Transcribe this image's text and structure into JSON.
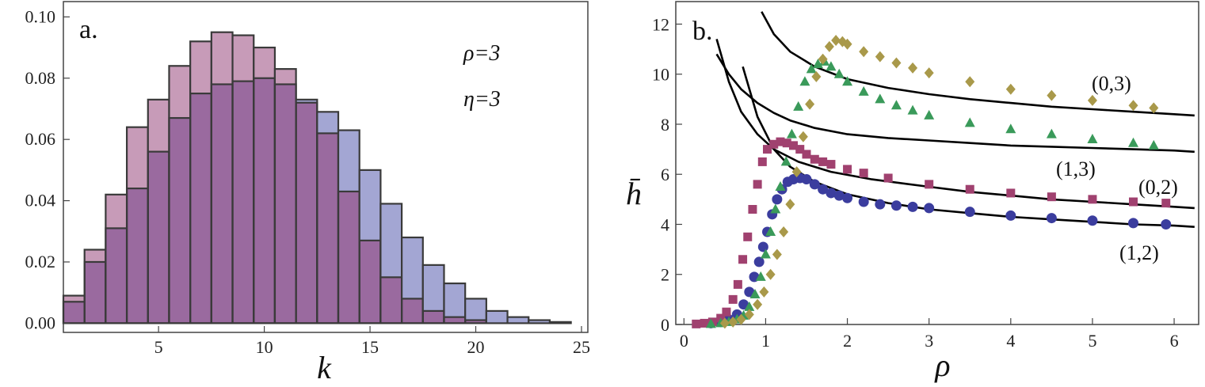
{
  "chart_data": [
    {
      "type": "bar",
      "panel_label": "a.",
      "xlabel": "k",
      "ylabel": "",
      "xlim": [
        0.5,
        25.3
      ],
      "ylim": [
        -0.003,
        0.105
      ],
      "x_ticks": [
        5,
        10,
        15,
        20,
        25
      ],
      "y_ticks": [
        "0.00",
        "0.02",
        "0.04",
        "0.06",
        "0.08",
        "0.10"
      ],
      "annotations": [
        "ρ=3",
        "η=3"
      ],
      "categories": [
        1,
        2,
        3,
        4,
        5,
        6,
        7,
        8,
        9,
        10,
        11,
        12,
        13,
        14,
        15,
        16,
        17,
        18,
        19,
        20,
        21,
        22,
        23,
        24
      ],
      "colors": {
        "pink": "#c79bb8",
        "blue": "#a3a6d3",
        "overlap": "#9a6a9f",
        "edge": "#3a3a3a"
      },
      "series": [
        {
          "name": "pink",
          "values": [
            0.009,
            0.024,
            0.042,
            0.064,
            0.073,
            0.084,
            0.092,
            0.095,
            0.094,
            0.09,
            0.083,
            0.072,
            0.062,
            0.043,
            0.027,
            0.015,
            0.008,
            0.004,
            0.002,
            0.001,
            0.0,
            0.0,
            0.0,
            0.0
          ]
        },
        {
          "name": "blue",
          "values": [
            0.007,
            0.02,
            0.031,
            0.044,
            0.056,
            0.067,
            0.075,
            0.078,
            0.079,
            0.08,
            0.078,
            0.073,
            0.069,
            0.063,
            0.05,
            0.039,
            0.028,
            0.019,
            0.013,
            0.008,
            0.004,
            0.002,
            0.001,
            0.0004
          ]
        }
      ]
    },
    {
      "type": "scatter",
      "panel_label": "b.",
      "xlabel": "ρ",
      "ylabel": "h̄",
      "xlim": [
        -0.1,
        6.3
      ],
      "ylim": [
        0,
        12.9
      ],
      "x_ticks": [
        0,
        1,
        2,
        3,
        4,
        5,
        6
      ],
      "y_ticks": [
        0,
        2,
        4,
        6,
        8,
        10,
        12
      ],
      "curve_labels": [
        "(0,3)",
        "(1,3)",
        "(0,2)",
        "(1,2)"
      ],
      "colors": {
        "circle": "#3b3d9e",
        "square": "#a0416f",
        "triangle": "#3a9a5a",
        "diamond": "#a9994a",
        "curve": "#000000"
      },
      "series": [
        {
          "name": "(1,2)",
          "marker": "circle",
          "x": [
            0.33,
            0.45,
            0.55,
            0.65,
            0.73,
            0.8,
            0.86,
            0.92,
            0.97,
            1.02,
            1.08,
            1.14,
            1.2,
            1.27,
            1.34,
            1.42,
            1.5,
            1.6,
            1.7,
            1.8,
            1.9,
            2.0,
            2.2,
            2.4,
            2.6,
            2.8,
            3.0,
            3.5,
            4.0,
            4.5,
            5.0,
            5.5,
            5.9
          ],
          "y": [
            0.05,
            0.1,
            0.2,
            0.4,
            0.8,
            1.3,
            1.9,
            2.5,
            3.1,
            3.7,
            4.4,
            5.0,
            5.4,
            5.7,
            5.8,
            5.85,
            5.8,
            5.6,
            5.4,
            5.25,
            5.15,
            5.05,
            4.9,
            4.8,
            4.75,
            4.7,
            4.65,
            4.5,
            4.35,
            4.25,
            4.15,
            4.05,
            4.0
          ]
        },
        {
          "name": "(0,2)",
          "marker": "square",
          "x": [
            0.15,
            0.25,
            0.35,
            0.45,
            0.52,
            0.6,
            0.66,
            0.72,
            0.78,
            0.84,
            0.9,
            0.96,
            1.02,
            1.1,
            1.18,
            1.26,
            1.34,
            1.42,
            1.5,
            1.6,
            1.7,
            1.8,
            2.0,
            2.2,
            2.5,
            3.0,
            3.5,
            4.0,
            4.5,
            5.0,
            5.5,
            5.9
          ],
          "y": [
            0.02,
            0.05,
            0.1,
            0.25,
            0.5,
            1.0,
            1.6,
            2.6,
            3.5,
            4.6,
            5.6,
            6.5,
            7.0,
            7.2,
            7.3,
            7.25,
            7.15,
            7.0,
            6.8,
            6.6,
            6.5,
            6.4,
            6.2,
            6.05,
            5.85,
            5.6,
            5.4,
            5.25,
            5.1,
            5.0,
            4.9,
            4.85
          ]
        },
        {
          "name": "(1,3)",
          "marker": "triangle",
          "x": [
            0.33,
            0.45,
            0.55,
            0.65,
            0.73,
            0.8,
            0.87,
            0.94,
            1.0,
            1.06,
            1.12,
            1.18,
            1.25,
            1.32,
            1.4,
            1.48,
            1.56,
            1.64,
            1.72,
            1.8,
            1.9,
            2.0,
            2.2,
            2.4,
            2.6,
            2.8,
            3.0,
            3.5,
            4.0,
            4.5,
            5.0,
            5.5,
            5.75
          ],
          "y": [
            0.02,
            0.05,
            0.1,
            0.2,
            0.35,
            0.7,
            1.2,
            1.9,
            2.8,
            3.7,
            4.6,
            5.5,
            6.5,
            7.6,
            8.7,
            9.7,
            10.2,
            10.4,
            10.5,
            10.3,
            10.0,
            9.7,
            9.3,
            9.0,
            8.75,
            8.55,
            8.35,
            8.05,
            7.8,
            7.6,
            7.4,
            7.25,
            7.15
          ]
        },
        {
          "name": "(0,3)",
          "marker": "diamond",
          "x": [
            0.5,
            0.6,
            0.7,
            0.8,
            0.9,
            0.98,
            1.06,
            1.14,
            1.22,
            1.3,
            1.38,
            1.46,
            1.54,
            1.62,
            1.7,
            1.78,
            1.86,
            1.94,
            2.0,
            2.2,
            2.4,
            2.6,
            2.8,
            3.0,
            3.5,
            4.0,
            4.5,
            5.0,
            5.5,
            5.75
          ],
          "y": [
            0.05,
            0.1,
            0.2,
            0.4,
            0.8,
            1.3,
            2.0,
            2.8,
            3.7,
            4.8,
            6.1,
            7.5,
            8.8,
            9.9,
            10.6,
            11.1,
            11.35,
            11.3,
            11.2,
            10.9,
            10.7,
            10.45,
            10.25,
            10.05,
            9.7,
            9.4,
            9.15,
            8.95,
            8.75,
            8.65
          ]
        }
      ],
      "curves": [
        {
          "name": "(1,2)",
          "x": [
            0.72,
            0.9,
            1.1,
            1.3,
            1.6,
            2.0,
            2.5,
            3.0,
            3.5,
            4.0,
            4.5,
            5.0,
            5.5,
            6.0,
            6.25
          ],
          "y": [
            10.3,
            8.3,
            7.0,
            6.3,
            5.7,
            5.2,
            4.85,
            4.6,
            4.45,
            4.3,
            4.2,
            4.1,
            4.0,
            3.95,
            3.9
          ]
        },
        {
          "name": "(0,2)",
          "x": [
            0.4,
            0.55,
            0.7,
            0.9,
            1.1,
            1.4,
            1.8,
            2.3,
            3.0,
            3.5,
            4.0,
            4.5,
            5.0,
            5.5,
            6.0,
            6.25
          ],
          "y": [
            11.4,
            9.7,
            8.5,
            7.6,
            7.0,
            6.5,
            6.1,
            5.8,
            5.5,
            5.3,
            5.15,
            5.0,
            4.9,
            4.8,
            4.7,
            4.65
          ]
        },
        {
          "name": "(1,3)",
          "x": [
            0.4,
            0.55,
            0.7,
            0.9,
            1.1,
            1.3,
            1.6,
            2.0,
            2.5,
            3.0,
            3.5,
            4.0,
            4.5,
            5.0,
            5.5,
            6.0,
            6.25
          ],
          "y": [
            10.8,
            10.0,
            9.4,
            8.85,
            8.45,
            8.15,
            7.85,
            7.6,
            7.45,
            7.35,
            7.25,
            7.15,
            7.1,
            7.05,
            7.0,
            6.95,
            6.9
          ]
        },
        {
          "name": "(0,3)",
          "x": [
            0.95,
            1.1,
            1.3,
            1.6,
            2.0,
            2.5,
            3.0,
            3.5,
            4.0,
            4.5,
            5.0,
            5.5,
            6.0,
            6.25
          ],
          "y": [
            12.5,
            11.6,
            10.9,
            10.3,
            9.8,
            9.45,
            9.2,
            9.0,
            8.85,
            8.7,
            8.6,
            8.5,
            8.4,
            8.35
          ]
        }
      ]
    }
  ]
}
